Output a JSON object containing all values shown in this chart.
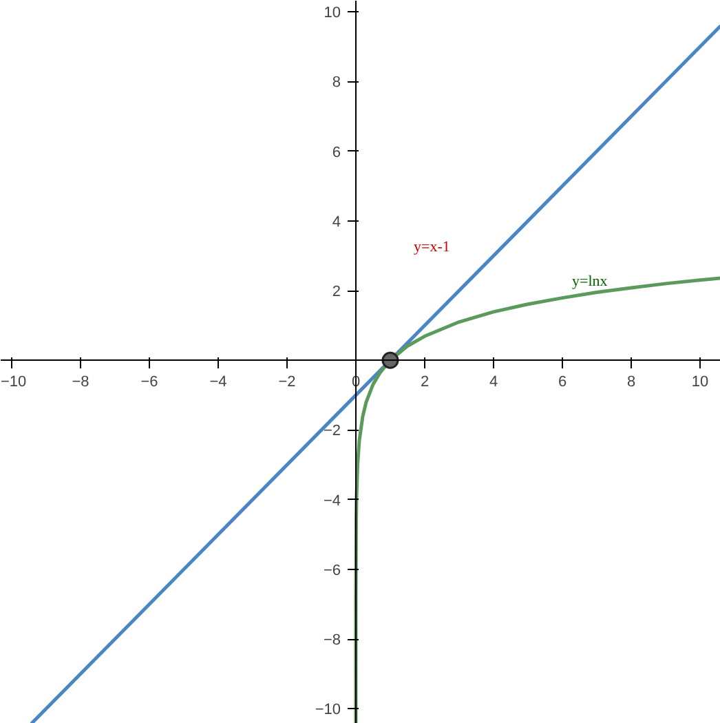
{
  "chart_data": {
    "type": "line",
    "xlim": [
      -10.32,
      10.6
    ],
    "ylim": [
      -10.43,
      10.32
    ],
    "xticks": [
      -10,
      -8,
      -6,
      -4,
      -2,
      0,
      2,
      4,
      6,
      8,
      10
    ],
    "yticks": [
      -10,
      -8,
      -6,
      -4,
      -2,
      2,
      4,
      6,
      8,
      10
    ],
    "grid": false,
    "series": [
      {
        "color": "#4a86c5",
        "x": [
          -9.43,
          10.6
        ],
        "values": [
          -10.43,
          9.6
        ]
      },
      {
        "color": "#5a9a5a",
        "x": [
          3e-05,
          0.0001,
          0.001,
          0.01,
          0.02,
          0.05,
          0.1,
          0.2,
          0.3,
          0.5,
          0.7,
          1,
          1.5,
          2,
          3,
          4,
          5,
          6,
          7,
          8,
          9,
          10,
          10.6
        ],
        "values": [
          -10.41,
          -9.21,
          -6.91,
          -4.61,
          -3.91,
          -3.0,
          -2.3,
          -1.61,
          -1.2,
          -0.69,
          -0.36,
          0,
          0.41,
          0.69,
          1.1,
          1.39,
          1.61,
          1.79,
          1.95,
          2.08,
          2.2,
          2.3,
          2.36
        ]
      },
      {
        "type": "scatter",
        "color": "#666666",
        "marker": "circle",
        "x": [
          1
        ],
        "values": [
          0
        ]
      }
    ],
    "annotations": [
      "y=x-1",
      "y=lnx"
    ]
  }
}
